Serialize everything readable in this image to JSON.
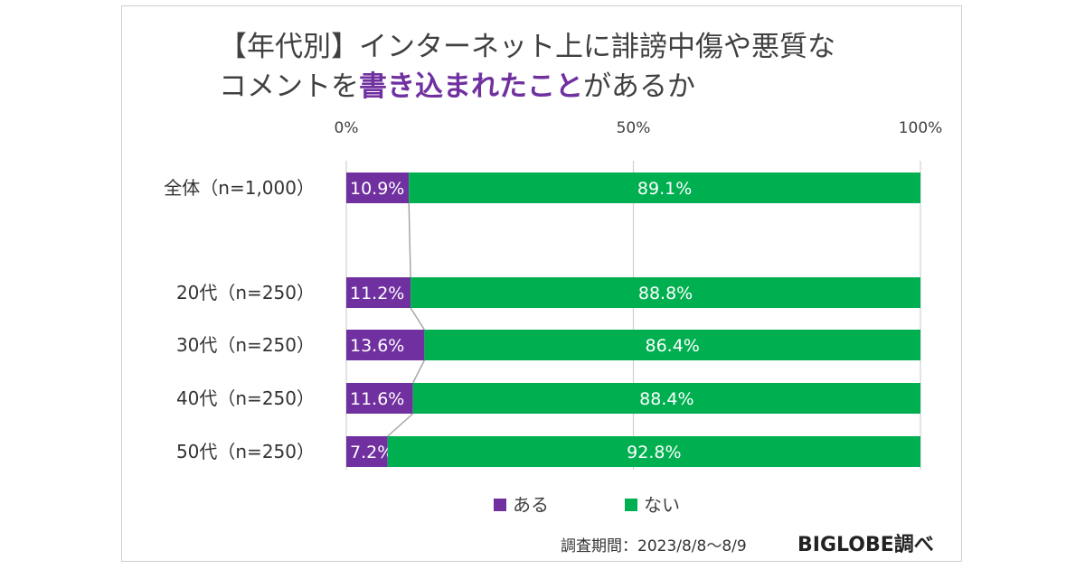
{
  "title": {
    "line1": "【年代別】インターネット上に誹謗中傷や悪質な",
    "line2_pre": "コメントを",
    "line2_highlight": "書き込まれたこと",
    "line2_post": "があるか"
  },
  "colors": {
    "series_yes": "#7030a0",
    "series_no": "#00b050",
    "highlight": "#7030a0"
  },
  "chart_data": {
    "type": "bar",
    "orientation": "horizontal",
    "stacked": true,
    "percent_stacked": true,
    "categories": [
      "全体（n=1,000）",
      "20代（n=250）",
      "30代（n=250）",
      "40代（n=250）",
      "50代（n=250）"
    ],
    "series": [
      {
        "name": "ある",
        "values": [
          10.9,
          11.2,
          13.6,
          11.6,
          7.2
        ],
        "labels": [
          "10.9%",
          "11.2%",
          "13.6%",
          "11.6%",
          "7.2%"
        ],
        "color": "#7030a0"
      },
      {
        "name": "ない",
        "values": [
          89.1,
          88.8,
          86.4,
          88.4,
          92.8
        ],
        "labels": [
          "89.1%",
          "88.8%",
          "86.4%",
          "88.4%",
          "92.8%"
        ],
        "color": "#00b050"
      }
    ],
    "x_ticks": [
      "0%",
      "50%",
      "100%"
    ],
    "xlim": [
      0,
      100
    ],
    "legend": {
      "position": "bottom",
      "entries": [
        "ある",
        "ない"
      ]
    },
    "grid": true
  },
  "footer": {
    "survey_period": "調査期間：2023/8/8～8/9",
    "brand": "BIGLOBE調べ"
  }
}
